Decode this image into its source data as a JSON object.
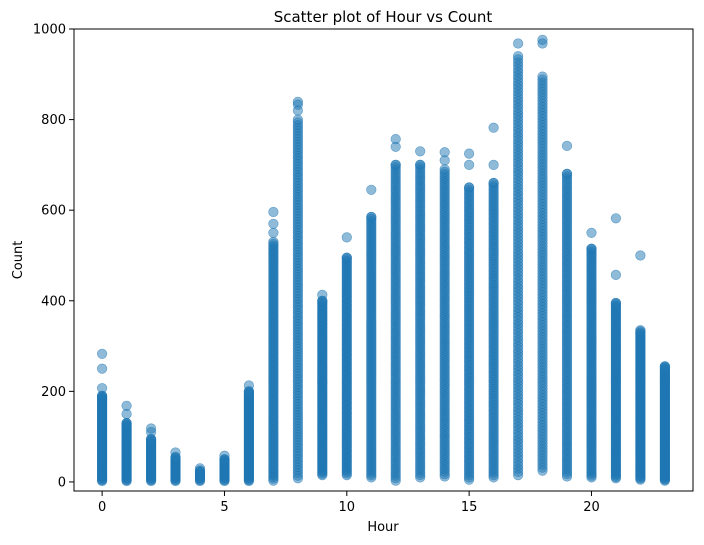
{
  "chart_data": {
    "type": "scatter",
    "title": "Scatter plot of Hour vs Count",
    "xlabel": "Hour",
    "ylabel": "Count",
    "xlim": [
      -1.15,
      24.15
    ],
    "ylim": [
      -20,
      1000
    ],
    "xticks": [
      0,
      5,
      10,
      15,
      20
    ],
    "yticks": [
      0,
      200,
      400,
      600,
      800,
      1000
    ],
    "grid": false,
    "marker_color": "#1f77b4",
    "marker_alpha": 0.5,
    "hours": [
      {
        "x": 0,
        "min": 2,
        "max": 190,
        "outliers": [
          207,
          250,
          283
        ]
      },
      {
        "x": 1,
        "min": 2,
        "max": 130,
        "outliers": [
          150,
          168
        ]
      },
      {
        "x": 2,
        "min": 2,
        "max": 95,
        "outliers": [
          110,
          118
        ]
      },
      {
        "x": 3,
        "min": 2,
        "max": 55,
        "outliers": [
          65
        ]
      },
      {
        "x": 4,
        "min": 2,
        "max": 25,
        "outliers": [
          30
        ]
      },
      {
        "x": 5,
        "min": 2,
        "max": 50,
        "outliers": [
          58
        ]
      },
      {
        "x": 6,
        "min": 2,
        "max": 200,
        "outliers": [
          213
        ]
      },
      {
        "x": 7,
        "min": 3,
        "max": 530,
        "outliers": [
          550,
          570,
          596
        ]
      },
      {
        "x": 8,
        "min": 8,
        "max": 800,
        "outliers": [
          820,
          833,
          839
        ]
      },
      {
        "x": 9,
        "min": 15,
        "max": 400,
        "outliers": [
          413
        ]
      },
      {
        "x": 10,
        "min": 15,
        "max": 495,
        "outliers": [
          540
        ]
      },
      {
        "x": 11,
        "min": 10,
        "max": 585,
        "outliers": [
          645
        ]
      },
      {
        "x": 12,
        "min": 3,
        "max": 700,
        "outliers": [
          740,
          757
        ]
      },
      {
        "x": 13,
        "min": 10,
        "max": 700,
        "outliers": [
          730
        ]
      },
      {
        "x": 14,
        "min": 12,
        "max": 690,
        "outliers": [
          710,
          728
        ]
      },
      {
        "x": 15,
        "min": 5,
        "max": 650,
        "outliers": [
          700,
          725
        ]
      },
      {
        "x": 16,
        "min": 10,
        "max": 660,
        "outliers": [
          700,
          782
        ]
      },
      {
        "x": 17,
        "min": 15,
        "max": 940,
        "outliers": [
          968
        ]
      },
      {
        "x": 18,
        "min": 25,
        "max": 895,
        "outliers": [
          968,
          976
        ]
      },
      {
        "x": 19,
        "min": 12,
        "max": 680,
        "outliers": [
          742
        ]
      },
      {
        "x": 20,
        "min": 10,
        "max": 515,
        "outliers": [
          550
        ]
      },
      {
        "x": 21,
        "min": 8,
        "max": 395,
        "outliers": [
          457,
          582
        ]
      },
      {
        "x": 22,
        "min": 5,
        "max": 335,
        "outliers": [
          500
        ]
      },
      {
        "x": 23,
        "min": 3,
        "max": 255,
        "outliers": []
      }
    ]
  }
}
